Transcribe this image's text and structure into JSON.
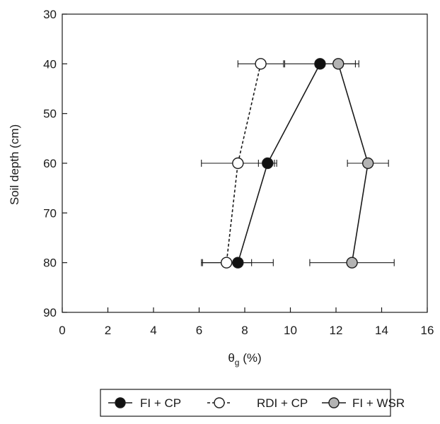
{
  "chart_data": {
    "type": "scatter",
    "title": "",
    "xlabel": {
      "base": "θ",
      "sub": "g",
      "rest": " (%)"
    },
    "ylabel": "Soil depth (cm)",
    "xlim": [
      0,
      16
    ],
    "ylim": [
      30,
      90
    ],
    "y_inverted": true,
    "x_ticks": [
      0,
      2,
      4,
      6,
      8,
      10,
      12,
      14,
      16
    ],
    "y_ticks": [
      30,
      40,
      50,
      60,
      70,
      80,
      90
    ],
    "grid": false,
    "legend_position": "bottom",
    "series": [
      {
        "name": "FI + CP",
        "marker_fill": "#111111",
        "line_style": "solid",
        "points": [
          {
            "x": 11.3,
            "y": 40,
            "err": 1.55
          },
          {
            "x": 9.0,
            "y": 60,
            "err": 0.4
          },
          {
            "x": 7.7,
            "y": 80,
            "err": 1.55
          }
        ]
      },
      {
        "name": "RDI + CP",
        "marker_fill": "#ffffff",
        "line_style": "dashed",
        "points": [
          {
            "x": 8.7,
            "y": 40,
            "err": 1.0
          },
          {
            "x": 7.7,
            "y": 60,
            "err": 1.6
          },
          {
            "x": 7.2,
            "y": 80,
            "err": 1.1
          }
        ]
      },
      {
        "name": "FI + WSR",
        "marker_fill": "#b3b3b3",
        "line_style": "solid",
        "points": [
          {
            "x": 12.1,
            "y": 40,
            "err": 0.9
          },
          {
            "x": 13.4,
            "y": 60,
            "err": 0.9
          },
          {
            "x": 12.7,
            "y": 80,
            "err": 1.85
          }
        ]
      }
    ]
  }
}
